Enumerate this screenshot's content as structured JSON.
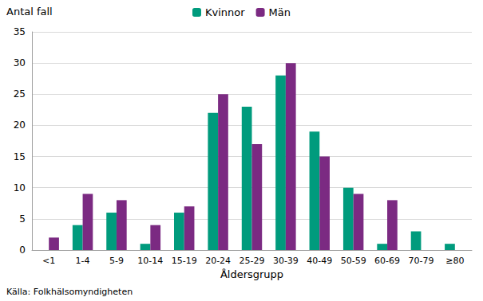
{
  "chart_data": {
    "type": "bar",
    "y_label": "Antal fall",
    "x_label": "Åldersgrupp",
    "annotations": [
      "Källa: Folkhälsomyndigheten"
    ],
    "categories": [
      "<1",
      "1-4",
      "5-9",
      "10-14",
      "15-19",
      "20-24",
      "25-29",
      "30-39",
      "40-49",
      "50-59",
      "60-69",
      "70-79",
      "≥80"
    ],
    "series": [
      {
        "name": "Kvinnor",
        "color": "#009b7d",
        "values": [
          0,
          4,
          6,
          1,
          6,
          22,
          23,
          28,
          19,
          10,
          1,
          3,
          1
        ]
      },
      {
        "name": "Män",
        "color": "#7b2a82",
        "values": [
          2,
          9,
          8,
          4,
          7,
          25,
          17,
          30,
          15,
          9,
          8,
          0,
          0
        ]
      }
    ],
    "ylim": [
      0,
      35
    ],
    "yticks": [
      0,
      5,
      10,
      15,
      20,
      25,
      30,
      35
    ],
    "grid": true,
    "legend": "top"
  }
}
